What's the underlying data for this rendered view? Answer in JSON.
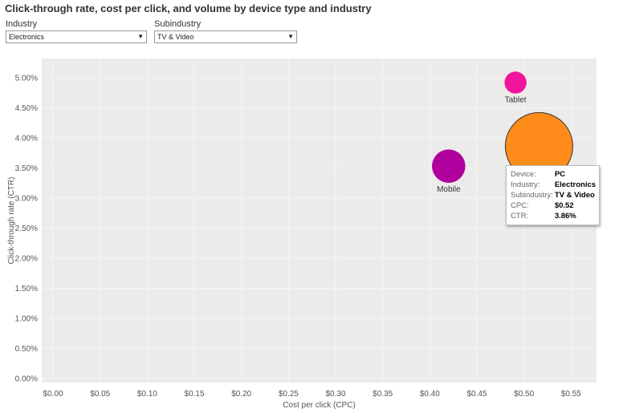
{
  "title": "Click-through rate, cost per click, and volume by device type and industry",
  "filters": {
    "industry": {
      "label": "Industry",
      "value": "Electronics"
    },
    "subindustry": {
      "label": "Subindustry",
      "value": "TV & Video"
    }
  },
  "colors": {
    "background": "#edebe9",
    "gridline": "#f6f5f4",
    "mobile": "#b0009d",
    "tablet": "#f0159b",
    "pc": "#ff8c1a"
  },
  "chart_data": {
    "type": "scatter",
    "xlabel": "Cost per click (CPC)",
    "ylabel": "Click-through rate (CTR)",
    "xlim": [
      -0.012,
      0.577
    ],
    "ylim": [
      -0.0007,
      0.0532
    ],
    "xticks": [
      0,
      0.05,
      0.1,
      0.15,
      0.2,
      0.25,
      0.3,
      0.35,
      0.4,
      0.45,
      0.5,
      0.55
    ],
    "xtick_labels": [
      "$0.00",
      "$0.05",
      "$0.10",
      "$0.15",
      "$0.20",
      "$0.25",
      "$0.30",
      "$0.35",
      "$0.40",
      "$0.45",
      "$0.50",
      "$0.55"
    ],
    "yticks": [
      0,
      0.005,
      0.01,
      0.015,
      0.02,
      0.025,
      0.03,
      0.035,
      0.04,
      0.045,
      0.05
    ],
    "ytick_labels": [
      "0.00%",
      "0.50%",
      "1.00%",
      "1.50%",
      "2.00%",
      "2.50%",
      "3.00%",
      "3.50%",
      "4.00%",
      "4.50%",
      "5.00%"
    ],
    "grid": true,
    "size_encoding": "volume",
    "points": [
      {
        "label": "Mobile",
        "x": 0.42,
        "y": 0.0353,
        "volume": 2.3,
        "color": "#b0009d",
        "show_label": true
      },
      {
        "label": "Tablet",
        "x": 0.491,
        "y": 0.0492,
        "volume": 1.0,
        "color": "#f0159b",
        "show_label": true
      },
      {
        "label": "PC",
        "x": 0.516,
        "y": 0.0386,
        "volume": 9.4,
        "color": "#ff8c1a",
        "show_label": false,
        "highlighted": true
      }
    ]
  },
  "tooltip": {
    "rows": [
      {
        "key": "Device:",
        "value": "PC"
      },
      {
        "key": "Industry:",
        "value": "Electronics"
      },
      {
        "key": "Subindustry:",
        "value": "TV & Video"
      },
      {
        "key": "CPC:",
        "value": "$0.52"
      },
      {
        "key": "CTR:",
        "value": "3.86%"
      }
    ]
  }
}
